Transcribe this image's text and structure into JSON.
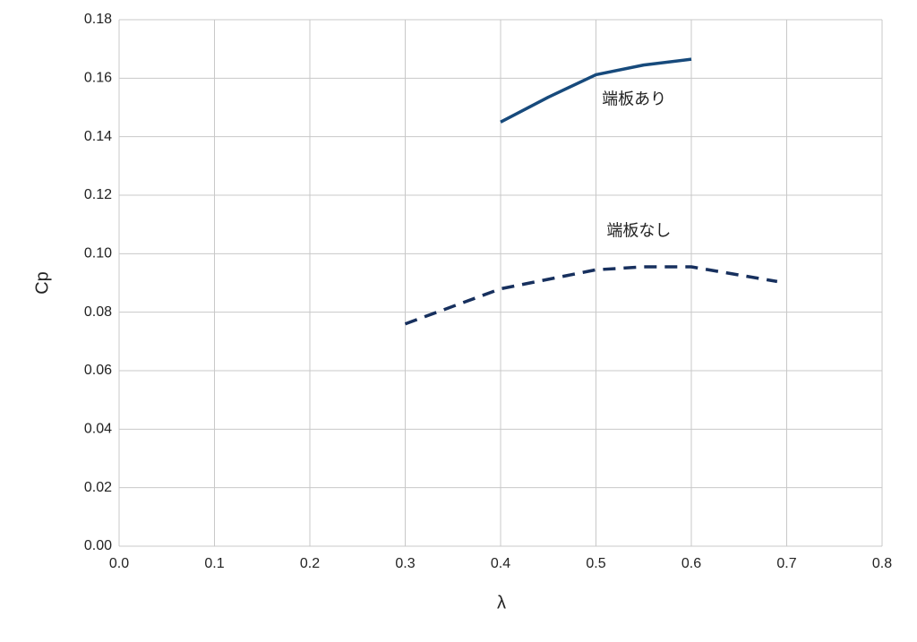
{
  "chart_data": {
    "type": "line",
    "x_label": "λ",
    "y_label": "Cp",
    "xlim": [
      0,
      0.8
    ],
    "xticks": [
      {
        "value": 0,
        "label": "0.0"
      },
      0.1,
      0.2,
      0.3,
      0.4,
      0.5,
      0.6,
      0.7,
      0.8
    ],
    "ylim": [
      0,
      0.18
    ],
    "yticks": [
      {
        "value": 0,
        "label": "0.00"
      },
      0.02,
      0.04,
      0.06,
      0.08,
      {
        "value": 0.1,
        "label": "0.10"
      },
      0.12,
      0.14,
      0.16,
      0.18
    ],
    "grid": true,
    "series": [
      {
        "name": "端板あり",
        "color": "#174a7c",
        "style": "solid",
        "x": [
          0.4,
          0.45,
          0.5,
          0.55,
          0.6
        ],
        "values": [
          0.145,
          0.1535,
          0.1612,
          0.1645,
          0.1665
        ]
      },
      {
        "name": "端板なし",
        "color": "#17305e",
        "style": "dashed",
        "x": [
          0.3,
          0.4,
          0.5,
          0.55,
          0.6,
          0.69
        ],
        "values": [
          0.076,
          0.088,
          0.0945,
          0.0955,
          0.0955,
          0.0905
        ]
      }
    ]
  }
}
